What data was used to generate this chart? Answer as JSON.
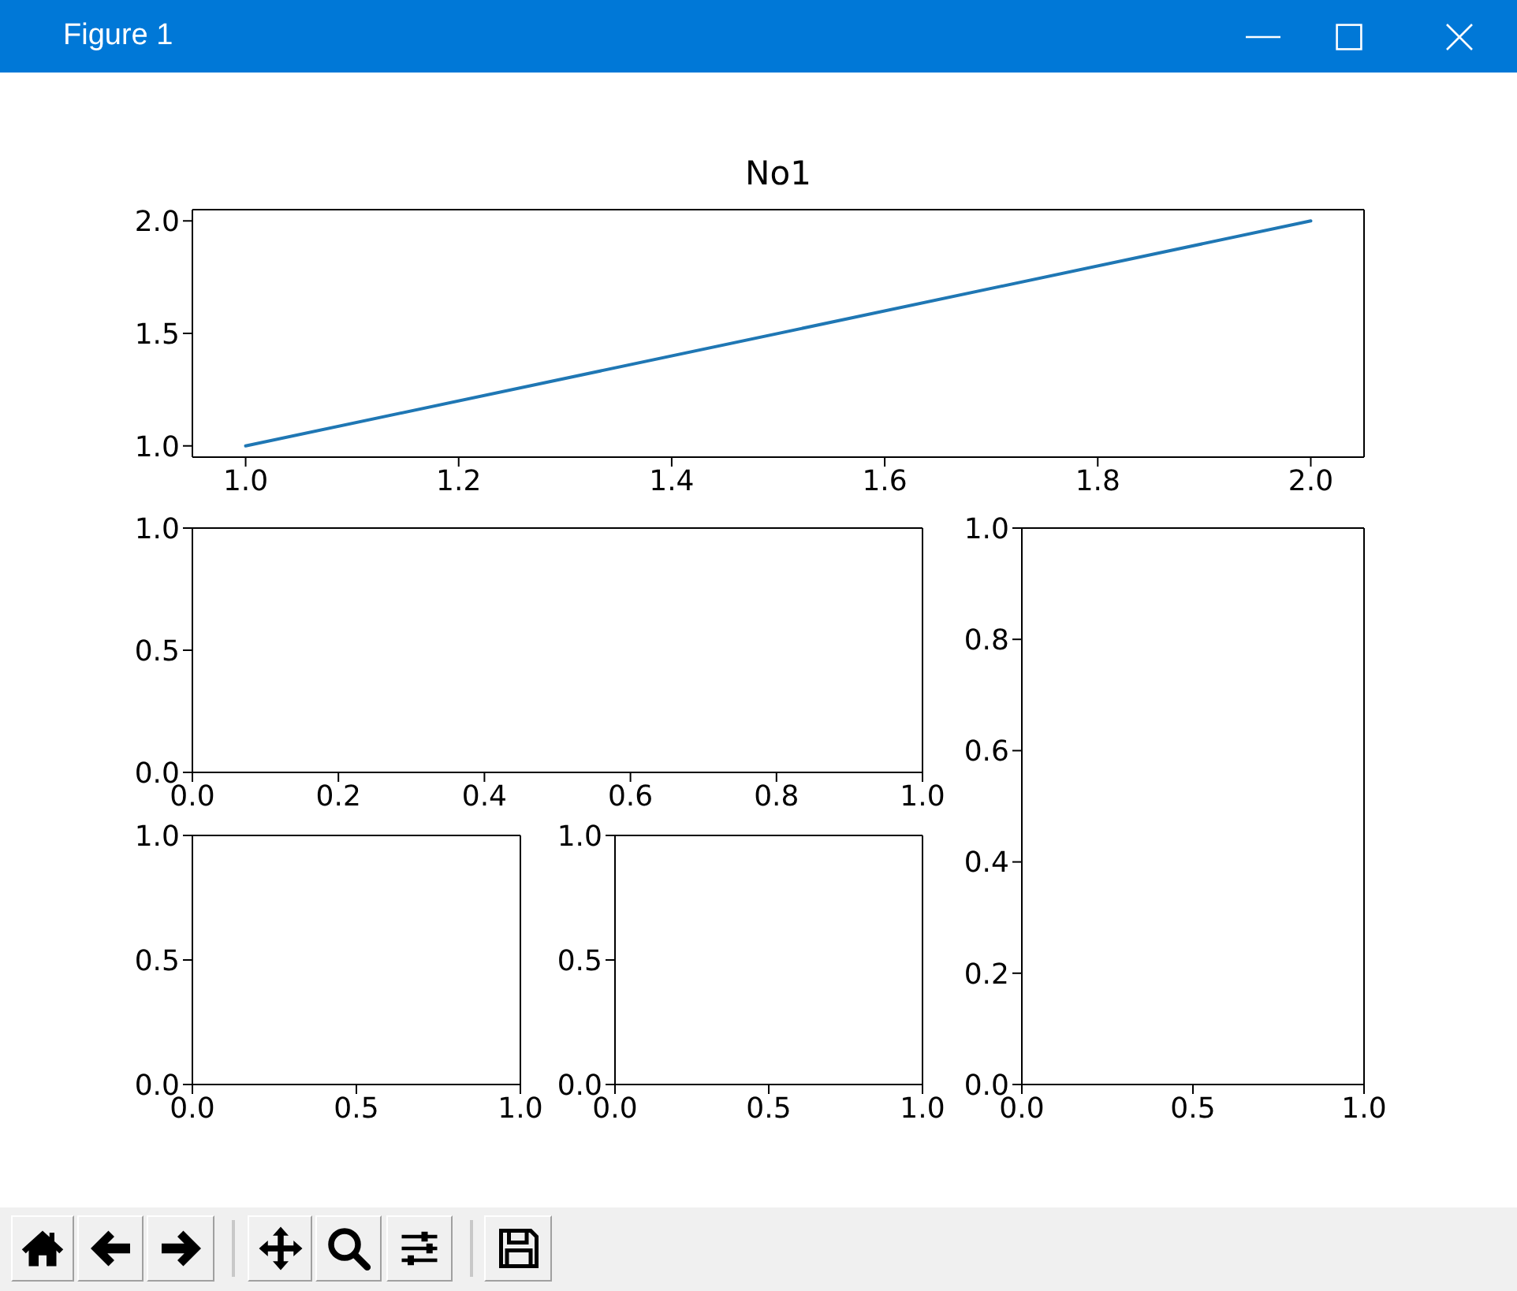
{
  "chart_data": [
    {
      "type": "line",
      "title": "No1",
      "annotations": [
        "Figure 1"
      ],
      "x": [
        1,
        2
      ],
      "values": [
        1,
        2
      ],
      "color": "#1f77b4",
      "xlim": [
        0.95,
        2.05
      ],
      "ylim": [
        0.95,
        2.05
      ],
      "xticks": [
        {
          "value": 1,
          "label": "1.0"
        },
        1.2,
        1.4,
        1.6,
        1.8,
        {
          "value": 2,
          "label": "2.0"
        }
      ],
      "yticks": [
        {
          "value": 1,
          "label": "1.0"
        },
        1.5,
        {
          "value": 2,
          "label": "2.0"
        }
      ]
    },
    {
      "type": "line",
      "xlim": [
        0,
        1
      ],
      "ylim": [
        0,
        1
      ],
      "xticks": [
        {
          "value": 0,
          "label": "0.0"
        },
        0.2,
        0.4,
        0.6,
        0.8,
        {
          "value": 1,
          "label": "1.0"
        }
      ],
      "yticks": [
        {
          "value": 0,
          "label": "0.0"
        },
        0.5,
        {
          "value": 1,
          "label": "1.0"
        }
      ]
    },
    {
      "type": "line",
      "xlim": [
        0,
        1
      ],
      "ylim": [
        0,
        1
      ],
      "xticks": [
        {
          "value": 0,
          "label": "0.0"
        },
        0.5,
        {
          "value": 1,
          "label": "1.0"
        }
      ],
      "yticks": [
        {
          "value": 0,
          "label": "0.0"
        },
        0.2,
        0.4,
        0.6,
        0.8,
        {
          "value": 1,
          "label": "1.0"
        }
      ]
    },
    {
      "type": "line",
      "xlim": [
        0,
        1
      ],
      "ylim": [
        0,
        1
      ],
      "xticks": [
        {
          "value": 0,
          "label": "0.0"
        },
        0.5,
        {
          "value": 1,
          "label": "1.0"
        }
      ],
      "yticks": [
        {
          "value": 0,
          "label": "0.0"
        },
        0.5,
        {
          "value": 1,
          "label": "1.0"
        }
      ]
    },
    {
      "type": "line",
      "xlim": [
        0,
        1
      ],
      "ylim": [
        0,
        1
      ],
      "xticks": [
        {
          "value": 0,
          "label": "0.0"
        },
        0.5,
        {
          "value": 1,
          "label": "1.0"
        }
      ],
      "yticks": [
        {
          "value": 0,
          "label": "0.0"
        },
        0.5,
        {
          "value": 1,
          "label": "1.0"
        }
      ]
    }
  ]
}
